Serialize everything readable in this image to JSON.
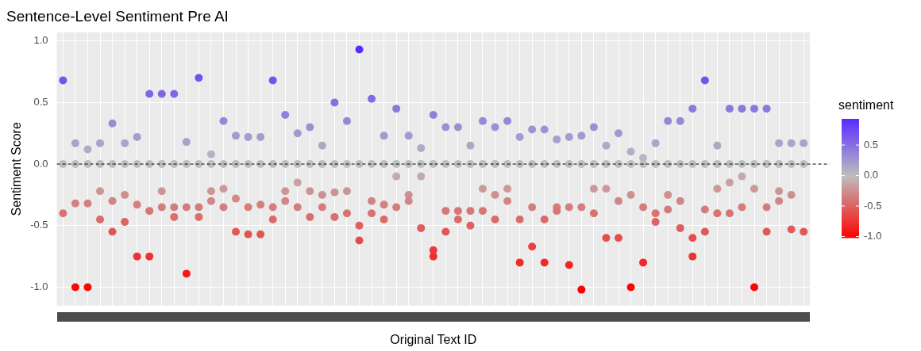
{
  "chart_data": {
    "type": "scatter",
    "title": "Sentence-Level Sentiment Pre AI",
    "xlabel": "Original Text ID",
    "ylabel": "Sentiment Score",
    "clabel": "sentiment",
    "categories": [
      null,
      null,
      null,
      null,
      null,
      null,
      null,
      null,
      null,
      null,
      null,
      null,
      null,
      null,
      null,
      null,
      null,
      null,
      null,
      null,
      null,
      null,
      null,
      null,
      null,
      null,
      null,
      null,
      null,
      null,
      null,
      null,
      null,
      null,
      null,
      null,
      null,
      null,
      null,
      null,
      null,
      null,
      null,
      null,
      null,
      null,
      null,
      null,
      null,
      null,
      null,
      null,
      null,
      null,
      null,
      null,
      null,
      null,
      null,
      null,
      null
    ],
    "series": [
      {
        "color": "#bebebe",
        "values": [
          0,
          0,
          0,
          0,
          0,
          0,
          0,
          0,
          0,
          0,
          0,
          0,
          0,
          0,
          0,
          0,
          0,
          0,
          0,
          0,
          0,
          0,
          0,
          0,
          0,
          0,
          0,
          0,
          0,
          0,
          0,
          0,
          0,
          0,
          0,
          0,
          0,
          0,
          0,
          0,
          0,
          0,
          0,
          0,
          0,
          0,
          0,
          0,
          0,
          0,
          0,
          0,
          0,
          0,
          0,
          0,
          0,
          0,
          0,
          0,
          0
        ]
      },
      {
        "values": [
          0.68,
          0.17,
          0.12,
          0.17,
          0.33,
          0.17,
          0.22,
          0.57,
          0.57,
          0.57,
          0.18,
          0.7,
          0.08,
          0.35,
          0.23,
          0.22,
          0.22,
          0.68,
          0.4,
          0.25,
          0.3,
          0.15,
          0.5,
          0.35,
          0.93,
          0.53,
          0.23,
          0.45,
          0.23,
          0.13,
          0.4,
          0.3,
          0.3,
          0.15,
          0.35,
          0.3,
          0.35,
          0.22,
          0.28,
          0.28,
          0.2,
          0.22,
          0.23,
          0.3,
          0.15,
          0.25,
          0.1,
          0.05,
          0.17,
          0.35,
          0.35,
          0.45,
          0.68,
          0.15,
          0.45,
          0.45,
          0.45,
          0.45,
          0.17,
          0.17,
          0.17
        ],
        "colors": [
          "#7554ee",
          "#aca3ca",
          "#b1abc6",
          "#aca3ca",
          "#9a8bd5",
          "#aca3ca",
          "#a69ccd",
          "#8165e6",
          "#8165e6",
          "#8165e6",
          "#aba2cb",
          "#7351ef",
          "#b5b2c4",
          "#9887d6",
          "#a59ace",
          "#a69ccd",
          "#a69ccd",
          "#7554ee",
          "#9380da",
          "#a397cf",
          "#9e8fd3",
          "#aea7c8",
          "#8870e1",
          "#9887d6",
          "#5a2dff",
          "#856be3",
          "#a59ace",
          "#8e78dd",
          "#a59ace",
          "#b0aac7",
          "#9380da",
          "#9e8fd3",
          "#9e8fd3",
          "#aea7c8",
          "#9887d6",
          "#9e8fd3",
          "#9887d6",
          "#a69ccd",
          "#a092d2",
          "#a092d2",
          "#a89fcc",
          "#a69ccd",
          "#a59ace",
          "#9e8fd3",
          "#aea7c8",
          "#a397cf",
          "#b3aec5",
          "#b9b6c2",
          "#aca3ca",
          "#9887d6",
          "#9887d6",
          "#8e78dd",
          "#7554ee",
          "#aea7c8",
          "#8e78dd",
          "#8e78dd",
          "#8e78dd",
          "#8e78dd",
          "#aca3ca",
          "#aca3ca",
          "#aca3ca"
        ]
      },
      {
        "values": [
          -0.4,
          -0.32,
          -0.32,
          -0.45,
          -0.3,
          -0.25,
          -0.33,
          -0.38,
          -0.22,
          -0.35,
          -0.35,
          -0.35,
          -0.22,
          -0.2,
          -0.55,
          -0.57,
          -0.57,
          -0.35,
          -0.22,
          -0.15,
          -0.22,
          -0.35,
          -0.23,
          -0.4,
          -0.5,
          -0.3,
          -0.45,
          -0.35,
          -0.3,
          -0.52,
          -0.75,
          -0.38,
          -0.38,
          -0.38,
          -0.38,
          -0.45,
          -0.3,
          -0.45,
          -0.35,
          -0.8,
          -0.38,
          -0.82,
          -1.02,
          -0.2,
          -0.2,
          -0.6,
          -0.25,
          -0.8,
          -0.47,
          -0.25,
          -0.3,
          -0.6,
          -0.37,
          -0.4,
          -0.15,
          -0.35,
          -1.0,
          -0.35,
          -0.3,
          -0.53,
          -0.55
        ],
        "colors": [
          "#d77373",
          "#d28282",
          "#d28282",
          "#db6a6a",
          "#d18686",
          "#ce8f8f",
          "#d38080",
          "#d67777",
          "#cc9595",
          "#d47d7d",
          "#d47d7d",
          "#d47d7d",
          "#cc9595",
          "#cb9999",
          "#e15858",
          "#e25454",
          "#e25454",
          "#d47d7d",
          "#cc9595",
          "#c8a2a2",
          "#cc9595",
          "#d47d7d",
          "#cd9393",
          "#d77373",
          "#de6161",
          "#d18686",
          "#db6a6a",
          "#d47d7d",
          "#d18686",
          "#df5d5d",
          "#ee3232",
          "#d67777",
          "#d67777",
          "#d67777",
          "#d67777",
          "#db6a6a",
          "#d18686",
          "#db6a6a",
          "#d47d7d",
          "#f12929",
          "#d67777",
          "#f22525",
          "#ff0000",
          "#cb9999",
          "#cb9999",
          "#e44e4e",
          "#ce8f8f",
          "#f12929",
          "#dc6666",
          "#ce8f8f",
          "#d18686",
          "#e44e4e",
          "#d67979",
          "#d77373",
          "#c8a2a2",
          "#d47d7d",
          "#fe0404",
          "#d47d7d",
          "#d18686",
          "#e05b5b",
          "#e15858"
        ]
      },
      {
        "values": [
          null,
          -1.0,
          -1.0,
          -0.22,
          -0.55,
          -0.47,
          -0.75,
          -0.75,
          -0.35,
          -0.43,
          -0.89,
          -0.43,
          -0.3,
          -0.35,
          -0.28,
          -0.35,
          -0.33,
          -0.45,
          -0.3,
          -0.35,
          -0.43,
          -0.25,
          -0.43,
          -0.22,
          -0.62,
          -0.4,
          -0.33,
          -0.1,
          -0.25,
          -0.1,
          -0.7,
          -0.55,
          -0.45,
          -0.5,
          -0.2,
          -0.25,
          -0.2,
          -0.8,
          -0.67,
          -0.45,
          -0.35,
          -0.35,
          -0.35,
          -0.4,
          -0.6,
          -0.3,
          -1.0,
          -0.35,
          -0.4,
          -0.37,
          -0.52,
          -0.75,
          -0.55,
          -0.2,
          -0.4,
          -0.1,
          -0.2,
          -0.55,
          -0.22,
          -0.25,
          null
        ],
        "colors": [
          null,
          "#fe0404",
          "#fe0404",
          "#cc9595",
          "#e15858",
          "#dc6666",
          "#ee3232",
          "#ee3232",
          "#d47d7d",
          "#d96e6e",
          "#f71818",
          "#d96e6e",
          "#d18686",
          "#d47d7d",
          "#d08a8a",
          "#d47d7d",
          "#d38080",
          "#db6a6a",
          "#d18686",
          "#d47d7d",
          "#d96e6e",
          "#ce8f8f",
          "#d96e6e",
          "#cc9595",
          "#e64a4a",
          "#d77373",
          "#d38080",
          "#c4abab",
          "#ce8f8f",
          "#c4abab",
          "#eb3c3c",
          "#e15858",
          "#db6a6a",
          "#de6161",
          "#cb9999",
          "#ce8f8f",
          "#cb9999",
          "#f12929",
          "#e94141",
          "#db6a6a",
          "#d47d7d",
          "#d47d7d",
          "#d47d7d",
          "#d77373",
          "#e44e4e",
          "#d18686",
          "#fe0404",
          "#d47d7d",
          "#d77373",
          "#d67979",
          "#df5d5d",
          "#ee3232",
          "#e15858",
          "#cb9999",
          "#d77373",
          "#c4abab",
          "#cb9999",
          "#e15858",
          "#cc9595",
          "#ce8f8f",
          null
        ]
      }
    ],
    "ylim": [
      -1.15,
      1.07
    ],
    "yticks": [
      {
        "value": -1,
        "label": "-1.0"
      },
      {
        "value": -0.5,
        "label": "-0.5"
      },
      {
        "value": 0,
        "label": "0.0"
      },
      {
        "value": 0.5,
        "label": "0.5"
      },
      {
        "value": 1,
        "label": "1.0"
      }
    ],
    "clim": [
      -1.02,
      0.93
    ],
    "cticks": [
      {
        "value": -1,
        "label": "-1.0"
      },
      {
        "value": -0.5,
        "label": "-0.5"
      },
      {
        "value": 0,
        "label": "0.0"
      },
      {
        "value": 0.5,
        "label": "0.5"
      }
    ],
    "ref_lines": [
      {
        "axis": "y",
        "value": 0,
        "color": "#000000",
        "line_style": "dashed"
      }
    ],
    "grid": true,
    "marker": "circle",
    "tick_labels": "y",
    "legend": false
  }
}
